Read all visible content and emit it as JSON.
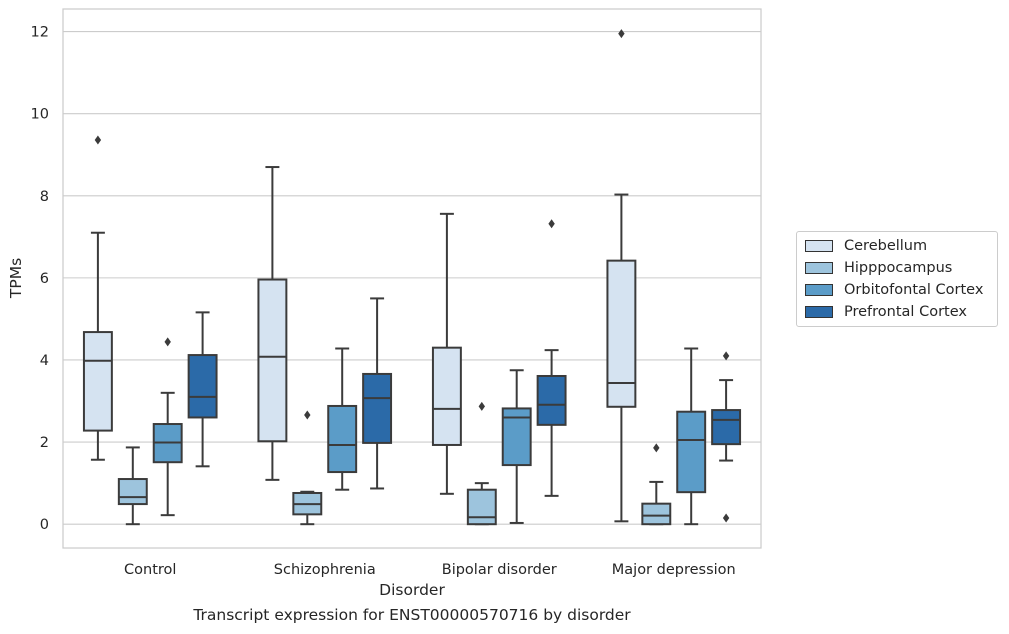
{
  "chart_data": {
    "type": "box",
    "xlabel": "Disorder",
    "ylabel": "TPMs",
    "caption": "Transcript expression for ENST00000570716 by disorder",
    "categories": [
      "Control",
      "Schizophrenia",
      "Bipolar disorder",
      "Major depression"
    ],
    "ylim": [
      -0.58,
      12.55
    ],
    "yticks": [
      "0",
      "2",
      "4",
      "6",
      "8",
      "10",
      "12"
    ],
    "grid": "horizontal",
    "legend_position": "right",
    "series": [
      {
        "name": "Cerebellum",
        "color": "#d5e3f1",
        "boxes": [
          {
            "whisker_low": 1.57,
            "q1": 2.28,
            "median": 3.98,
            "q3": 4.68,
            "whisker_high": 7.1,
            "outliers": [
              9.36
            ]
          },
          {
            "whisker_low": 1.08,
            "q1": 2.02,
            "median": 4.08,
            "q3": 5.96,
            "whisker_high": 8.7,
            "outliers": []
          },
          {
            "whisker_low": 0.74,
            "q1": 1.93,
            "median": 2.81,
            "q3": 4.3,
            "whisker_high": 7.56,
            "outliers": []
          },
          {
            "whisker_low": 0.07,
            "q1": 2.86,
            "median": 3.44,
            "q3": 6.42,
            "whisker_high": 8.03,
            "outliers": [
              11.95
            ]
          }
        ]
      },
      {
        "name": "Hipppocampus",
        "color": "#9dc4dd",
        "boxes": [
          {
            "whisker_low": 0.0,
            "q1": 0.49,
            "median": 0.66,
            "q3": 1.1,
            "whisker_high": 1.87,
            "outliers": []
          },
          {
            "whisker_low": 0.0,
            "q1": 0.24,
            "median": 0.49,
            "q3": 0.76,
            "whisker_high": 0.79,
            "outliers": [
              2.66
            ]
          },
          {
            "whisker_low": 0.0,
            "q1": 0.0,
            "median": 0.17,
            "q3": 0.84,
            "whisker_high": 1.0,
            "outliers": [
              2.87
            ]
          },
          {
            "whisker_low": 0.0,
            "q1": 0.0,
            "median": 0.21,
            "q3": 0.5,
            "whisker_high": 1.03,
            "outliers": [
              1.86
            ]
          }
        ]
      },
      {
        "name": "Orbitofontal Cortex",
        "color": "#5b9cc8",
        "boxes": [
          {
            "whisker_low": 0.22,
            "q1": 1.51,
            "median": 1.99,
            "q3": 2.44,
            "whisker_high": 3.2,
            "outliers": [
              4.44
            ]
          },
          {
            "whisker_low": 0.84,
            "q1": 1.27,
            "median": 1.93,
            "q3": 2.88,
            "whisker_high": 4.28,
            "outliers": []
          },
          {
            "whisker_low": 0.03,
            "q1": 1.44,
            "median": 2.6,
            "q3": 2.82,
            "whisker_high": 3.75,
            "outliers": []
          },
          {
            "whisker_low": 0.0,
            "q1": 0.78,
            "median": 2.05,
            "q3": 2.74,
            "whisker_high": 4.28,
            "outliers": []
          }
        ]
      },
      {
        "name": "Prefrontal Cortex",
        "color": "#2b6aa8",
        "boxes": [
          {
            "whisker_low": 1.41,
            "q1": 2.6,
            "median": 3.1,
            "q3": 4.12,
            "whisker_high": 5.16,
            "outliers": []
          },
          {
            "whisker_low": 0.87,
            "q1": 1.98,
            "median": 3.07,
            "q3": 3.66,
            "whisker_high": 5.5,
            "outliers": []
          },
          {
            "whisker_low": 0.69,
            "q1": 2.42,
            "median": 2.91,
            "q3": 3.61,
            "whisker_high": 4.24,
            "outliers": [
              7.32
            ]
          },
          {
            "whisker_low": 1.55,
            "q1": 1.95,
            "median": 2.54,
            "q3": 2.78,
            "whisker_high": 3.51,
            "outliers": [
              4.1,
              0.15
            ]
          }
        ]
      }
    ]
  }
}
